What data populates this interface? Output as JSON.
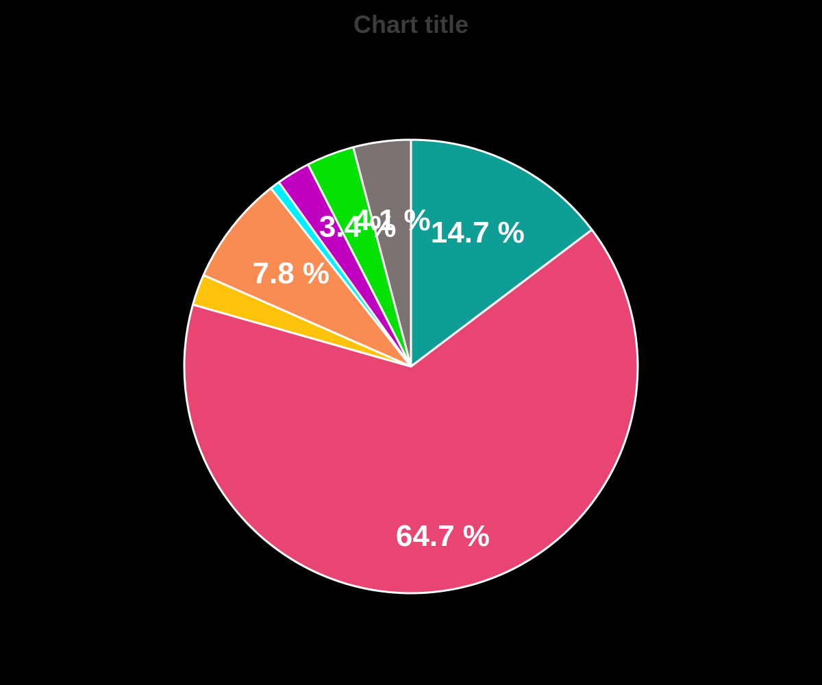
{
  "chart_data": {
    "type": "pie",
    "title": "Chart title",
    "unit": "%",
    "values_sum": 100,
    "start_angle_deg": 0,
    "direction": "clockwise",
    "legend": "none",
    "slices": [
      {
        "value": 14.7,
        "label": "14.7 %",
        "color": "#0E9E96",
        "label_r": 0.66
      },
      {
        "value": 64.7,
        "label": "64.7 %",
        "color": "#E84573",
        "label_r": 0.76
      },
      {
        "value": 2.2,
        "label": "",
        "color": "#FDC20A"
      },
      {
        "value": 7.8,
        "label": "7.8 %",
        "color": "#F98C52",
        "label_r": 0.67
      },
      {
        "value": 0.7,
        "label": "",
        "color": "#00F0FF"
      },
      {
        "value": 2.4,
        "label": "",
        "color": "#C002C0"
      },
      {
        "value": 3.4,
        "label": "3.4 %",
        "color": "#05E105",
        "label_r": 0.66
      },
      {
        "value": 4.1,
        "label": "4.1 %",
        "color": "#7B7372",
        "label_r": 0.65
      }
    ],
    "style": {
      "background": "#000000",
      "title_color": "#3C3C3C",
      "label_color": "#FFFFFF",
      "slice_border_color": "#FFFFFF",
      "slice_border_width": 3
    }
  }
}
